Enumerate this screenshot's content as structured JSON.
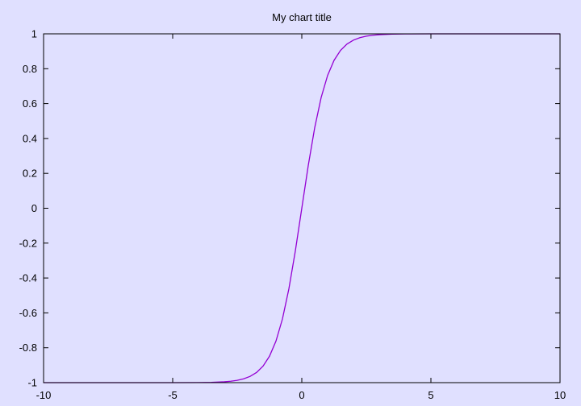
{
  "chart_data": {
    "type": "line",
    "title": "My chart title",
    "xlim": [
      -10,
      10
    ],
    "ylim": [
      -1,
      1
    ],
    "x_ticks": [
      -10,
      -5,
      0,
      5,
      10
    ],
    "x_tick_labels": [
      "-10",
      "-5",
      "0",
      "5",
      "10"
    ],
    "y_ticks": [
      -1,
      -0.8,
      -0.6,
      -0.4,
      -0.2,
      0,
      0.2,
      0.4,
      0.6,
      0.8,
      1
    ],
    "y_tick_labels": [
      "-1",
      "-0.8",
      "-0.6",
      "-0.4",
      "-0.2",
      "0",
      "0.2",
      "0.4",
      "0.6",
      "0.8",
      "1"
    ],
    "grid": false,
    "legend": "none",
    "series": [
      {
        "color": "#9400D3",
        "x": [
          -10,
          -5,
          -4,
          -3.5,
          -3,
          -2.75,
          -2.5,
          -2.25,
          -2,
          -1.75,
          -1.5,
          -1.25,
          -1,
          -0.75,
          -0.5,
          -0.25,
          0,
          0.25,
          0.5,
          0.75,
          1,
          1.25,
          1.5,
          1.75,
          2,
          2.25,
          2.5,
          2.75,
          3,
          3.5,
          4,
          5,
          10
        ],
        "y": [
          -1,
          -0.9999,
          -0.9993,
          -0.9982,
          -0.9951,
          -0.9918,
          -0.9866,
          -0.978,
          -0.964,
          -0.9414,
          -0.9051,
          -0.8483,
          -0.7616,
          -0.6351,
          -0.4621,
          -0.2449,
          0,
          0.2449,
          0.4621,
          0.6351,
          0.7616,
          0.8483,
          0.9051,
          0.9414,
          0.964,
          0.978,
          0.9866,
          0.9918,
          0.9951,
          0.9982,
          0.9993,
          0.9999,
          1
        ]
      }
    ]
  },
  "colors": {
    "background": "#E0E0FF",
    "axis": "#000000",
    "series": "#9400D3"
  }
}
